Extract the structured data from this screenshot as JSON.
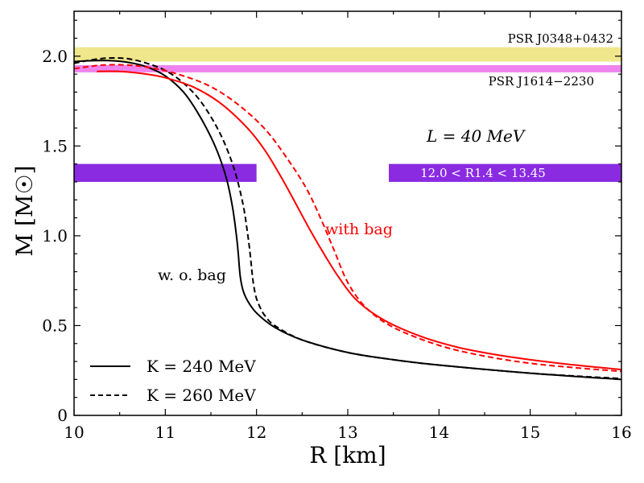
{
  "chart_data": {
    "type": "line",
    "xlabel": "R [km]",
    "ylabel": "M [M☉]",
    "xlim": [
      10,
      16
    ],
    "ylim": [
      0,
      2.25
    ],
    "x_ticks": [
      10,
      11,
      12,
      13,
      14,
      15,
      16
    ],
    "y_ticks": [
      0,
      0.5,
      1.0,
      1.5,
      2.0
    ],
    "x_tick_labels": [
      "10",
      "11",
      "12",
      "13",
      "14",
      "15",
      "16"
    ],
    "y_tick_labels": [
      "0",
      "0.5",
      "1.0",
      "1.5",
      "2.0"
    ],
    "grid": false,
    "legend": {
      "position": "bottom-left",
      "entries": [
        {
          "label": "K = 240 MeV",
          "style": "solid",
          "color": "#000000"
        },
        {
          "label": "K = 260 MeV",
          "style": "dashed",
          "color": "#000000"
        }
      ]
    },
    "bands": [
      {
        "label": "PSR J0348+0432",
        "y_range": [
          1.97,
          2.05
        ],
        "x_range": [
          10,
          16
        ],
        "color": "#f0e68c"
      },
      {
        "label": "PSR J1614−2230",
        "y_range": [
          1.91,
          1.95
        ],
        "x_range": [
          10,
          16
        ],
        "color": "#ee82ee"
      },
      {
        "label": "",
        "y_range": [
          1.3,
          1.4
        ],
        "x_range": [
          10,
          12.0
        ],
        "color": "#8a2be2"
      },
      {
        "label": "12.0 < R1.4 < 13.45",
        "y_range": [
          1.3,
          1.4
        ],
        "x_range": [
          13.45,
          16
        ],
        "color": "#8a2be2"
      }
    ],
    "annotations": [
      {
        "text": "L = 40 MeV",
        "x": 12.85,
        "y": 1.57,
        "color": "#000000"
      },
      {
        "text": "with bag",
        "x": 12.6,
        "y": 1.03,
        "color": "#ff0000"
      },
      {
        "text": "w. o. bag",
        "x": 10.95,
        "y": 0.77,
        "color": "#000000"
      }
    ],
    "series": [
      {
        "name": "w. o. bag, K = 240 MeV",
        "color": "#000000",
        "dash": "solid",
        "x": [
          10.0,
          10.2,
          10.4,
          10.6,
          10.8,
          11.0,
          11.2,
          11.35,
          11.5,
          11.6,
          11.68,
          11.74,
          11.78,
          11.8,
          11.82,
          11.85,
          11.9,
          12.0,
          12.2,
          12.5,
          13.0,
          13.5,
          14.0,
          15.0,
          16.0
        ],
        "y": [
          1.97,
          1.975,
          1.975,
          1.965,
          1.94,
          1.89,
          1.8,
          1.69,
          1.55,
          1.43,
          1.3,
          1.15,
          1.0,
          0.9,
          0.78,
          0.7,
          0.64,
          0.57,
          0.49,
          0.42,
          0.35,
          0.31,
          0.28,
          0.235,
          0.2
        ]
      },
      {
        "name": "w. o. bag, K = 260 MeV",
        "color": "#000000",
        "dash": "dashed",
        "x": [
          10.0,
          10.2,
          10.4,
          10.6,
          10.8,
          11.0,
          11.2,
          11.4,
          11.6,
          11.75,
          11.85,
          11.9,
          11.93,
          11.95,
          11.97,
          12.0,
          12.05,
          12.1,
          12.2,
          12.5,
          13.0,
          13.5,
          14.0,
          15.0,
          16.0
        ],
        "y": [
          1.96,
          1.98,
          1.99,
          1.985,
          1.96,
          1.92,
          1.85,
          1.74,
          1.57,
          1.38,
          1.18,
          1.02,
          0.9,
          0.8,
          0.72,
          0.65,
          0.59,
          0.55,
          0.5,
          0.42,
          0.35,
          0.31,
          0.28,
          0.235,
          0.205
        ]
      },
      {
        "name": "with bag, K = 240 MeV",
        "color": "#ff0000",
        "dash": "solid",
        "x": [
          10.25,
          10.5,
          10.8,
          11.0,
          11.3,
          11.6,
          11.9,
          12.1,
          12.3,
          12.45,
          12.6,
          12.75,
          12.9,
          13.1,
          13.4,
          13.8,
          14.2,
          14.6,
          15.0,
          15.5,
          16.0
        ],
        "y": [
          1.915,
          1.915,
          1.9,
          1.88,
          1.83,
          1.74,
          1.6,
          1.47,
          1.3,
          1.16,
          1.02,
          0.89,
          0.77,
          0.64,
          0.53,
          0.44,
          0.38,
          0.34,
          0.31,
          0.28,
          0.255
        ]
      },
      {
        "name": "with bag, K = 260 MeV",
        "color": "#ff0000",
        "dash": "dashed",
        "x": [
          10.0,
          10.3,
          10.6,
          10.9,
          11.2,
          11.5,
          11.8,
          12.1,
          12.35,
          12.55,
          12.7,
          12.85,
          13.0,
          13.2,
          13.5,
          14.0,
          14.5,
          15.0,
          15.5,
          16.0
        ],
        "y": [
          1.93,
          1.95,
          1.95,
          1.93,
          1.89,
          1.83,
          1.73,
          1.59,
          1.42,
          1.26,
          1.1,
          0.92,
          0.74,
          0.6,
          0.49,
          0.39,
          0.33,
          0.29,
          0.265,
          0.245
        ]
      }
    ]
  }
}
